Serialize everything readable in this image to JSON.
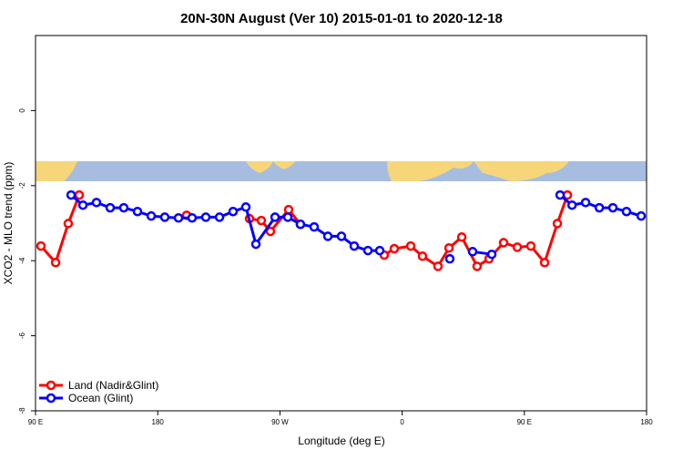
{
  "chart_data": {
    "type": "line",
    "title": "20N-30N August (Ver 10)   2015-01-01 to 2020-12-18",
    "x_label": "Longitude (deg E)",
    "y_label": "XCO2 - MLO trend (ppm)",
    "xlim": [
      90,
      540
    ],
    "xticks": [
      {
        "value": 90,
        "label": "90 E"
      },
      {
        "value": 180,
        "label": "180"
      },
      {
        "value": 270,
        "label": "90 W"
      },
      {
        "value": 360,
        "label": "0"
      },
      {
        "value": 450,
        "label": "90 E"
      },
      {
        "value": 540,
        "label": "180"
      }
    ],
    "ylim": [
      -8,
      2
    ],
    "yticks": [
      0,
      -2,
      -4,
      -6,
      -8
    ],
    "legend": "bottom-left",
    "series": [
      {
        "name": "Land (Nadir&Glint)",
        "color": "#ff0000",
        "x": [
          94.0,
          104.8,
          114.1,
          122.2,
          null,
          201.3,
          null,
          247.6,
          256.3,
          263.0,
          276.4,
          285.1,
          null,
          346.8,
          354.2,
          366.3,
          375.0,
          386.4,
          394.5,
          403.9,
          415.2,
          424.0,
          434.7,
          444.8,
          454.8,
          464.9,
          474.3,
          481.7
        ],
        "values": [
          -3.61,
          -4.05,
          -3.01,
          -2.25,
          null,
          -2.79,
          null,
          -2.88,
          -2.93,
          -3.22,
          -2.64,
          -3.03,
          null,
          -3.85,
          -3.68,
          -3.61,
          -3.88,
          -4.15,
          -3.66,
          -3.37,
          -4.15,
          -3.95,
          -3.52,
          -3.64,
          -3.61,
          -4.05,
          -3.01,
          -2.25
        ]
      },
      {
        "name": "Ocean (Glint)",
        "color": "#0000ff",
        "x": [
          116.2,
          124.9,
          134.9,
          145.0,
          155.0,
          165.1,
          175.2,
          185.2,
          195.3,
          205.3,
          215.4,
          225.5,
          235.5,
          244.9,
          252.3,
          266.4,
          275.8,
          285.1,
          295.2,
          305.3,
          315.3,
          324.7,
          334.8,
          343.5,
          null,
          395.1,
          null,
          411.9,
          426.0,
          null,
          476.3,
          485.1,
          495.1,
          505.2,
          515.2,
          525.2,
          536.0
        ],
        "values": [
          -2.25,
          -2.52,
          -2.45,
          -2.59,
          -2.59,
          -2.69,
          -2.81,
          -2.84,
          -2.86,
          -2.86,
          -2.84,
          -2.84,
          -2.69,
          -2.57,
          -3.56,
          -2.84,
          -2.84,
          -3.03,
          -3.1,
          -3.35,
          -3.35,
          -3.61,
          -3.73,
          -3.73,
          null,
          -3.95,
          null,
          -3.76,
          -3.83,
          null,
          -2.25,
          -2.52,
          -2.45,
          -2.59,
          -2.59,
          -2.69,
          -2.81
        ]
      }
    ]
  }
}
